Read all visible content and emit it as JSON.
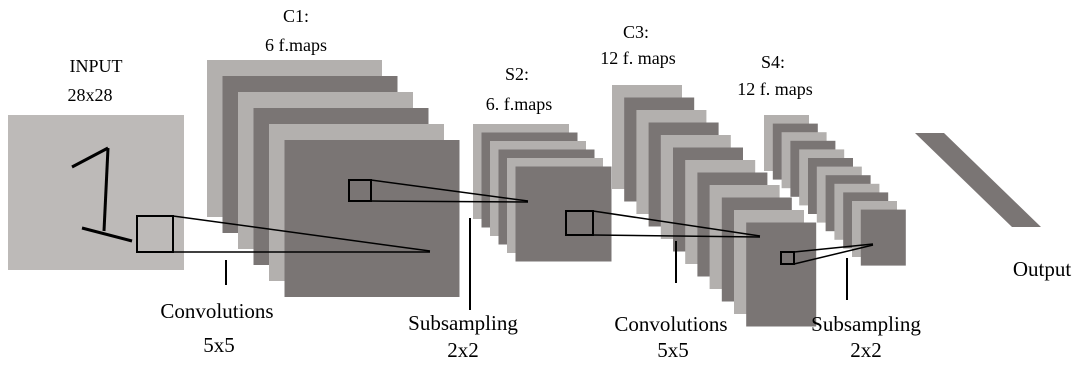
{
  "colors": {
    "light_gray": "#b3b0ae",
    "dark_gray": "#7a7574",
    "input_gray": "#bdbab8",
    "stroke": "#000000",
    "background": "#ffffff"
  },
  "layers": {
    "input": {
      "title": "INPUT",
      "size": "28x28"
    },
    "c1": {
      "title": "C1:",
      "maps": "6 f.maps",
      "count": 6
    },
    "s2": {
      "title": "S2:",
      "maps": "6. f.maps",
      "count": 6
    },
    "c3": {
      "title": "C3:",
      "maps": "12 f. maps",
      "count": 12
    },
    "s4": {
      "title": "S4:",
      "maps": "12 f. maps",
      "count": 12
    },
    "output": {
      "title": "Output"
    }
  },
  "operations": [
    {
      "name": "Convolutions",
      "kernel": "5x5"
    },
    {
      "name": "Subsampling",
      "kernel": "2x2"
    },
    {
      "name": "Convolutions",
      "kernel": "5x5"
    },
    {
      "name": "Subsampling",
      "kernel": "2x2"
    }
  ]
}
